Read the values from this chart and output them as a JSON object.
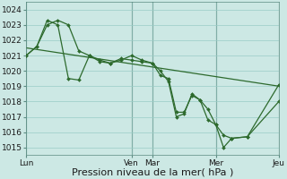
{
  "bg_color": "#cce8e4",
  "grid_color": "#99ccc6",
  "line_color": "#2d6a2d",
  "marker_color": "#2d6a2d",
  "title": "Pression niveau de la mer( hPa )",
  "ylim": [
    1014.5,
    1024.5
  ],
  "yticks": [
    1015,
    1016,
    1017,
    1018,
    1019,
    1020,
    1021,
    1022,
    1023,
    1024
  ],
  "xtick_positions": [
    0,
    0.417,
    0.5,
    0.75,
    1.0
  ],
  "xtick_labels": [
    "Lun",
    "Ven",
    "Mar",
    "Mer",
    "Jeu"
  ],
  "vline_positions": [
    0,
    0.417,
    0.5,
    0.75,
    1.0
  ],
  "xmin": 0.0,
  "xmax": 1.0,
  "line1_x": [
    0.0,
    0.042,
    0.083,
    0.125,
    0.167,
    0.208,
    0.25,
    0.292,
    0.333,
    0.375,
    0.417,
    0.458,
    0.5,
    0.531,
    0.563,
    0.594,
    0.625,
    0.656,
    0.688,
    0.719,
    0.75,
    0.781,
    0.813,
    0.875,
    1.0
  ],
  "line1_y": [
    1021.0,
    1021.6,
    1023.0,
    1023.3,
    1023.0,
    1021.3,
    1021.0,
    1020.7,
    1020.5,
    1020.8,
    1020.7,
    1020.6,
    1020.5,
    1019.7,
    1019.5,
    1017.3,
    1017.3,
    1018.4,
    1018.1,
    1017.5,
    1016.5,
    1015.8,
    1015.6,
    1015.7,
    1019.1
  ],
  "line2_x": [
    0.0,
    0.042,
    0.083,
    0.125,
    0.167,
    0.208,
    0.25,
    0.292,
    0.333,
    0.375,
    0.417,
    0.458,
    0.5,
    0.531,
    0.563,
    0.594,
    0.625,
    0.656,
    0.688,
    0.719,
    0.75,
    0.781,
    0.813,
    0.875,
    1.0
  ],
  "line2_y": [
    1021.0,
    1021.6,
    1023.3,
    1023.0,
    1019.5,
    1019.4,
    1021.0,
    1020.6,
    1020.5,
    1020.7,
    1021.0,
    1020.7,
    1020.5,
    1020.0,
    1019.3,
    1017.0,
    1017.2,
    1018.5,
    1018.1,
    1016.8,
    1016.5,
    1015.0,
    1015.6,
    1015.7,
    1018.0
  ],
  "line3_x": [
    0.0,
    1.0
  ],
  "line3_y": [
    1021.5,
    1019.0
  ],
  "title_fontsize": 8,
  "tick_fontsize": 6.5
}
